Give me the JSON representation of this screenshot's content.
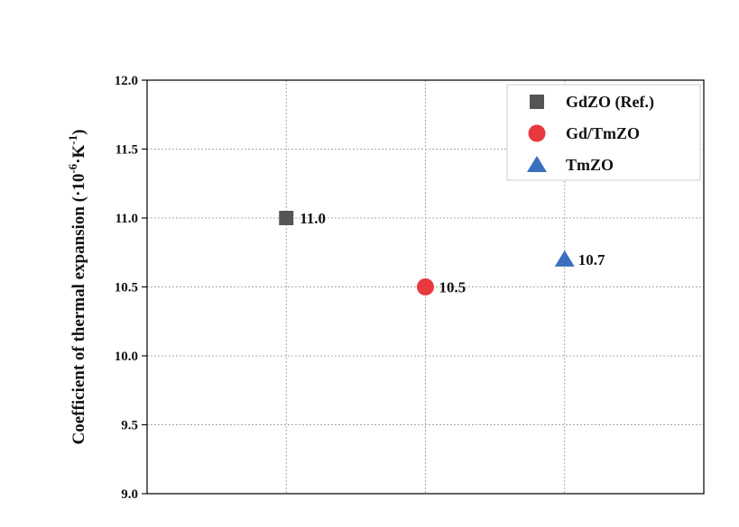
{
  "chart_data": {
    "type": "scatter",
    "title": "",
    "xlabel": "",
    "ylabel": "Coefficient of thermal expansion (·10",
    "ylabel_exp1": "-6",
    "ylabel_mid": "·K",
    "ylabel_exp2": "-1",
    "ylabel_end": ")",
    "ylim": [
      9.0,
      12.0
    ],
    "yticks": [
      "9.0",
      "9.5",
      "10.0",
      "10.5",
      "11.0",
      "11.5",
      "12.0"
    ],
    "x_positions": [
      1,
      2,
      3
    ],
    "xlim": [
      0,
      4
    ],
    "grid": true,
    "legend_position": "top-right",
    "series": [
      {
        "name": "GdZO (Ref.)",
        "x": 1,
        "value": 11.0,
        "label": "11.0",
        "marker": "square",
        "color": "#555555"
      },
      {
        "name": "Gd/TmZO",
        "x": 2,
        "value": 10.5,
        "label": "10.5",
        "marker": "circle",
        "color": "#e8393f"
      },
      {
        "name": "TmZO",
        "x": 3,
        "value": 10.7,
        "label": "10.7",
        "marker": "triangle",
        "color": "#3a6fc0"
      }
    ]
  }
}
